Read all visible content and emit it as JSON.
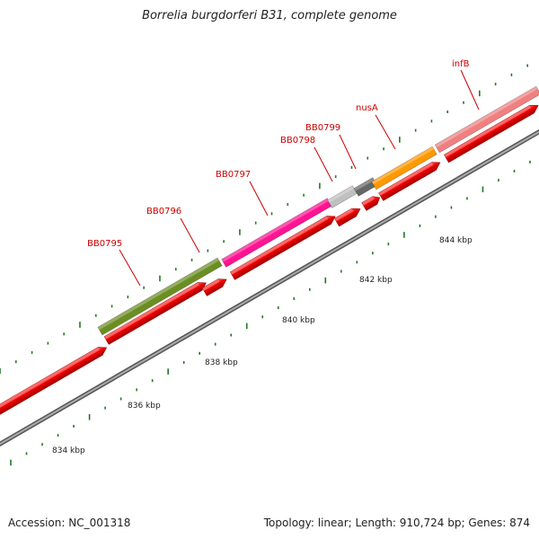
{
  "title": "Borrelia burgdorferi B31, complete genome",
  "footer": {
    "accession": "Accession: NC_001318",
    "summary": "Topology: linear; Length: 910,724 bp; Genes: 874"
  },
  "axis": {
    "tick_labels": [
      "834 kbp",
      "836 kbp",
      "838 kbp",
      "840 kbp",
      "842 kbp",
      "844 kbp"
    ]
  },
  "genes": [
    {
      "label": "BB0795",
      "color": "#6b8e23"
    },
    {
      "label": "BB0796",
      "color": "#cccccc"
    },
    {
      "label": "BB0797",
      "color": "#ff1493"
    },
    {
      "label": "BB0798",
      "color": "#c0c0c0"
    },
    {
      "label": "BB0799",
      "color": "#666666"
    },
    {
      "label": "nusA",
      "color": "#ff9900"
    },
    {
      "label": "infB",
      "color": "#f08080"
    }
  ],
  "colors": {
    "cds": "#ee0000",
    "backbone": "#888888",
    "tick": "#227722",
    "label": "#cc0000"
  }
}
